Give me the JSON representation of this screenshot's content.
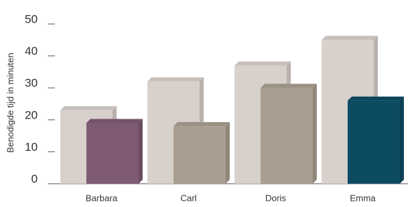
{
  "chart_data": {
    "type": "bar3d",
    "y_label": "Benodigde tijd in minuten",
    "categories": [
      "Barbara",
      "Carl",
      "Doris",
      "Emma"
    ],
    "series": [
      {
        "color": "#d8d0cb",
        "values": [
          23,
          32,
          37,
          45
        ]
      },
      {
        "colors": [
          "#7e5b73",
          "#a99e90",
          "#a99e90",
          "#0d4b63"
        ],
        "values": [
          19,
          18,
          30,
          26
        ]
      }
    ],
    "ylim": [
      0,
      50
    ],
    "yticks": [
      0,
      10,
      20,
      30,
      40,
      50
    ]
  }
}
